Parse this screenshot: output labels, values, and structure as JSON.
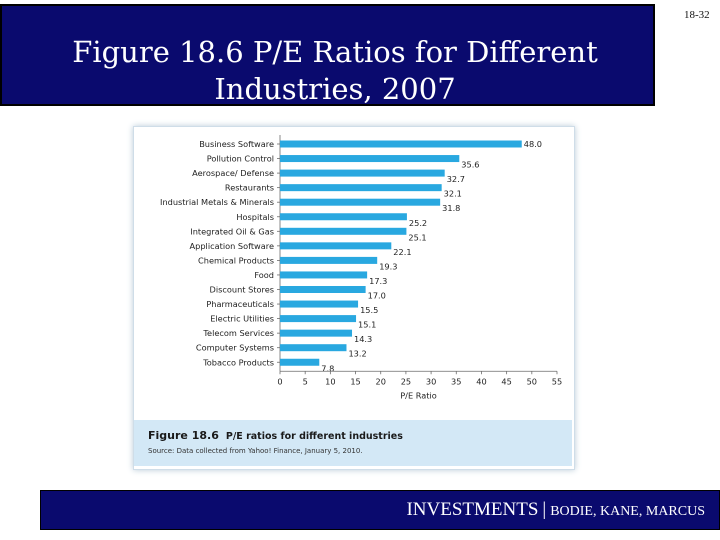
{
  "slide": {
    "number": "18-32",
    "title_line1": "Figure 18.6 P/E Ratios for Different",
    "title_line2": "Industries, 2007"
  },
  "figure": {
    "caption_label": "Figure 18.6",
    "caption_text": "P/E ratios for different industries",
    "source": "Source: Data collected from Yahoo! Finance, January 5, 2010."
  },
  "footer": {
    "main": "INVESTMENTS",
    "separator": "|",
    "authors": "BODIE, KANE, MARCUS"
  },
  "colors": {
    "title_bg": "#0a0a6e",
    "bar": "#29a8e0",
    "caption_bg": "#d3e8f6"
  },
  "chart_data": {
    "type": "bar",
    "orientation": "horizontal",
    "categories": [
      "Business Software",
      "Pollution Control",
      "Aerospace/ Defense",
      "Restaurants",
      "Industrial Metals & Minerals",
      "Hospitals",
      "Integrated Oil & Gas",
      "Application Software",
      "Chemical Products",
      "Food",
      "Discount Stores",
      "Pharmaceuticals",
      "Electric Utilities",
      "Telecom Services",
      "Computer Systems",
      "Tobacco Products"
    ],
    "values": [
      48.0,
      35.6,
      32.7,
      32.1,
      31.8,
      25.2,
      25.1,
      22.1,
      19.3,
      17.3,
      17.0,
      15.5,
      15.1,
      14.3,
      13.2,
      7.8
    ],
    "value_labels": [
      "48.0",
      "35.6",
      "32.7",
      "32.1",
      "31.8",
      "25.2",
      "25.1",
      "22.1",
      "19.3",
      "17.3",
      "17.0",
      "15.5",
      "15.1",
      "14.3",
      "13.2",
      "7.8"
    ],
    "xlabel": "P/E Ratio",
    "xlim": [
      0,
      55
    ],
    "xticks": [
      0,
      5,
      10,
      15,
      20,
      25,
      30,
      35,
      40,
      45,
      50,
      55
    ],
    "grid": false
  }
}
